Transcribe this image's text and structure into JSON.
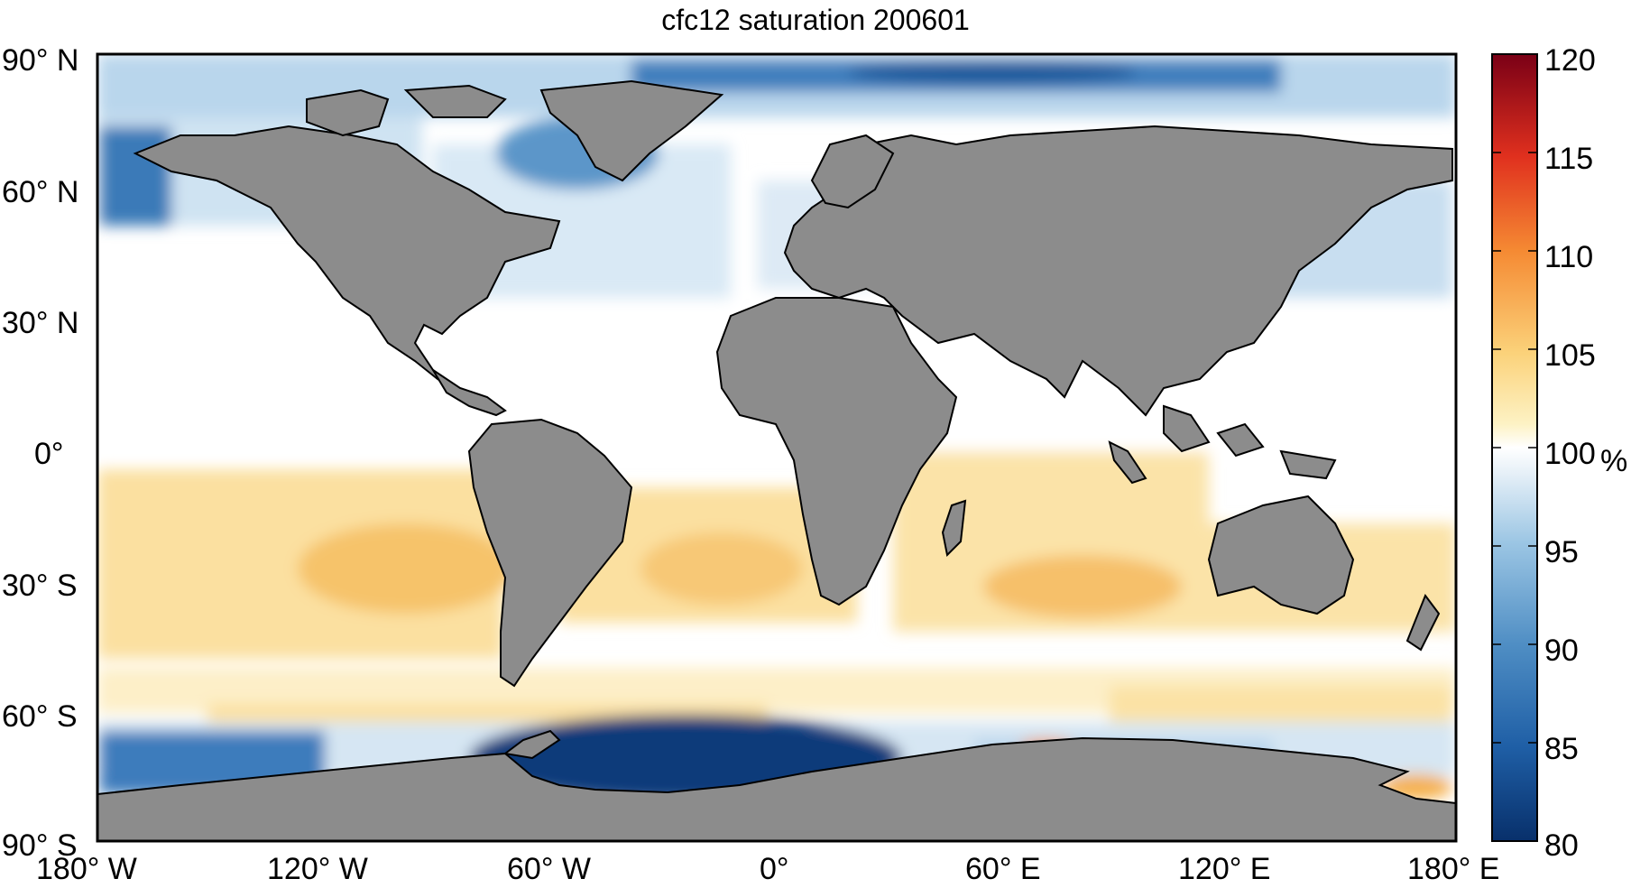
{
  "title": "cfc12 saturation 200601",
  "lat_ticks": [
    "90° N",
    "60° N",
    "30° N",
    "0°",
    "30° S",
    "60° S",
    "90° S"
  ],
  "lon_ticks": [
    "180° W",
    "120° W",
    "60° W",
    "0°",
    "60° E",
    "120° E",
    "180° E"
  ],
  "colorbar": {
    "ticks": [
      "120",
      "115",
      "110",
      "105",
      "100",
      "95",
      "90",
      "85",
      "80"
    ],
    "unit": "%",
    "min": 80,
    "max": 120
  },
  "colors": {
    "land": "#8c8c8c",
    "ocean_neutral": "#ffffff",
    "low": "#0b3b7a",
    "mid_low": "#4f8ec4",
    "light_low": "#cfe1f0",
    "light_high": "#fbe9a8",
    "mid_high": "#f6b94d",
    "high": "#d7301f",
    "max": "#7a0016"
  }
}
